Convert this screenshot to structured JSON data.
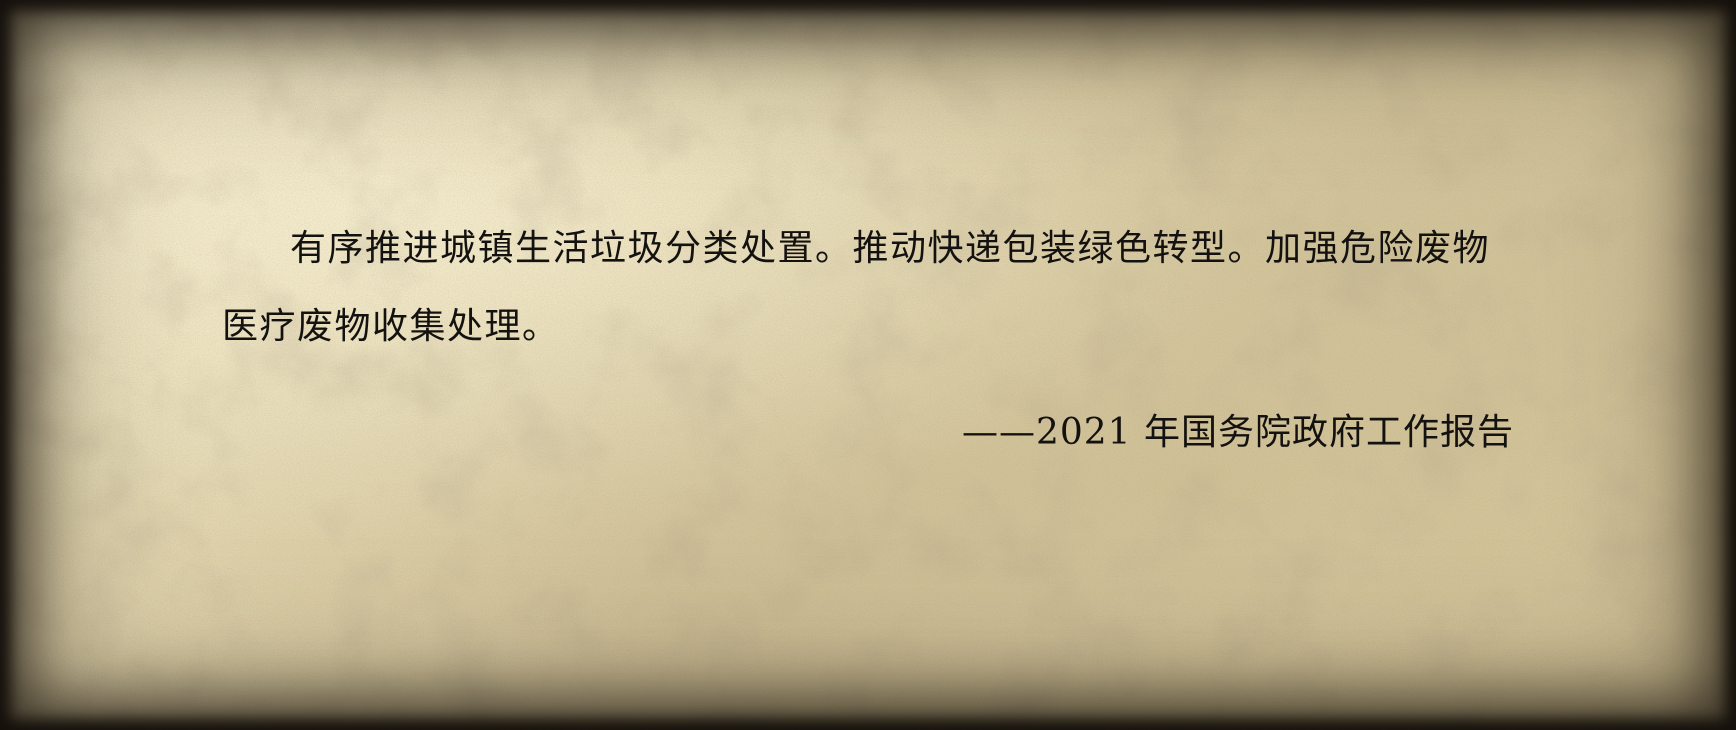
{
  "quote": {
    "text": "有序推进城镇生活垃圾分类处置。推动快递包装绿色转型。加强危险废物医疗废物收集处理。",
    "source": "——2021 年国务院政府工作报告"
  },
  "colors": {
    "paper": "#e2d5ad",
    "ink": "#141210",
    "edge": "#1c1813"
  }
}
